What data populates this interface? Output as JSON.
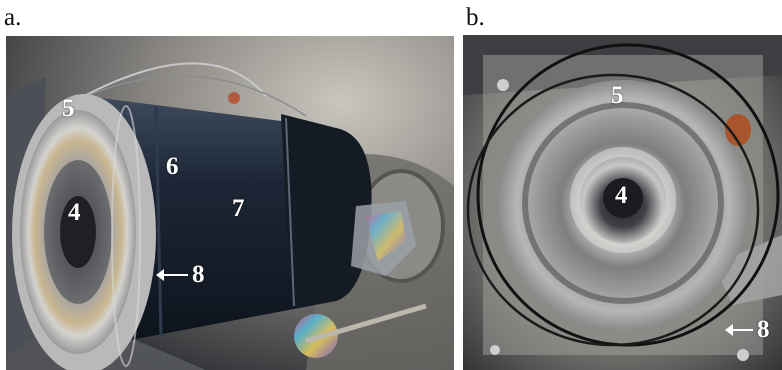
{
  "panels": [
    {
      "letter": "a.",
      "labels": {
        "l5": "5",
        "l6": "6",
        "l4": "4",
        "l7": "7",
        "l8": "8"
      }
    },
    {
      "letter": "b.",
      "labels": {
        "l5": "5",
        "l4": "4",
        "l8": "8"
      }
    }
  ]
}
